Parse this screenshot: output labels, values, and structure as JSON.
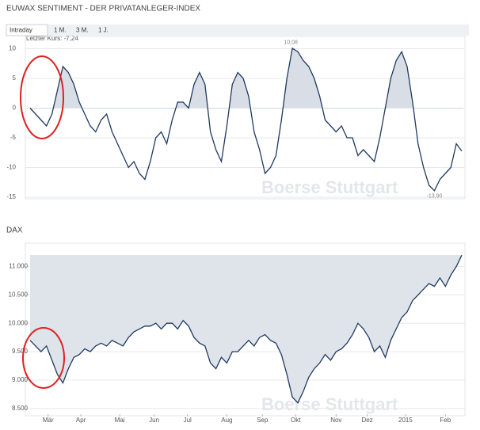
{
  "tabs": [
    "Intraday",
    "1 M.",
    "3 M.",
    "1 J."
  ],
  "chart_data": [
    {
      "type": "line",
      "title": "EUWAX SENTIMENT - DER PRIVATANLEGER-INDEX",
      "last_label": "Letzter Kurs: -7,24",
      "max_label": "10,08",
      "min_label": "-13,90",
      "watermark": "Boerse Stuttgart",
      "color": "#1f3a5f",
      "fill": "positive",
      "values": [
        0,
        -1,
        -2,
        -3,
        -1,
        3,
        7,
        6,
        4,
        1,
        -1,
        -3,
        -4,
        -2,
        -1,
        -4,
        -6,
        -8,
        -10,
        -9,
        -11,
        -12,
        -9,
        -5,
        -4,
        -6,
        -2,
        1,
        1,
        0,
        4,
        6,
        4,
        -4,
        -7,
        -9,
        -3,
        4,
        6,
        5,
        2,
        -4,
        -7,
        -11,
        -10,
        -8,
        -2,
        5,
        10.08,
        9.5,
        8,
        7,
        5,
        2,
        -2,
        -3,
        -4,
        -3,
        -5,
        -5,
        -8,
        -7,
        -8,
        -9,
        -5,
        0,
        5,
        8,
        9.5,
        7,
        1,
        -6,
        -10,
        -13,
        -13.9,
        -12,
        -11,
        -10,
        -6,
        -7.24
      ],
      "ylim": [
        -15,
        11
      ],
      "yticks": [
        10,
        5,
        0,
        -5,
        -10,
        -15
      ],
      "grid": true
    },
    {
      "type": "line",
      "title": "DAX",
      "watermark": "Boerse Stuttgart",
      "color": "#1f3a5f",
      "fill": "above",
      "values": [
        9700,
        9600,
        9500,
        9600,
        9350,
        9100,
        8950,
        9200,
        9400,
        9450,
        9550,
        9500,
        9600,
        9650,
        9600,
        9700,
        9650,
        9600,
        9750,
        9850,
        9900,
        9950,
        9950,
        10000,
        9900,
        10000,
        10000,
        9900,
        10050,
        9950,
        9750,
        9650,
        9600,
        9300,
        9200,
        9400,
        9300,
        9500,
        9500,
        9600,
        9700,
        9600,
        9750,
        9800,
        9700,
        9650,
        9450,
        9100,
        8700,
        8600,
        8800,
        9050,
        9200,
        9300,
        9450,
        9350,
        9500,
        9550,
        9650,
        9800,
        10000,
        9900,
        9750,
        9500,
        9600,
        9400,
        9700,
        9900,
        10100,
        10200,
        10400,
        10500,
        10600,
        10700,
        10650,
        10800,
        10650,
        10850,
        11000,
        11200
      ],
      "ylim": [
        8400,
        11300
      ],
      "yticks": [
        {
          "value": 8500,
          "label": "8.500"
        },
        {
          "value": 9000,
          "label": "9.000"
        },
        {
          "value": 9500,
          "label": "9.500"
        },
        {
          "value": 10000,
          "label": "10.000"
        },
        {
          "value": 10500,
          "label": "10.500"
        },
        {
          "value": 11000,
          "label": "11.000"
        }
      ],
      "xticks": [
        {
          "value": 3.3,
          "label": "Mär"
        },
        {
          "value": 9.3,
          "label": "Apr"
        },
        {
          "value": 16.4,
          "label": "Mai"
        },
        {
          "value": 22.7,
          "label": "Jun"
        },
        {
          "value": 28.8,
          "label": "Jul"
        },
        {
          "value": 36,
          "label": "Aug"
        },
        {
          "value": 42.5,
          "label": "Sep"
        },
        {
          "value": 48.6,
          "label": "Okt"
        },
        {
          "value": 56,
          "label": "Nov"
        },
        {
          "value": 61.7,
          "label": "Dez"
        },
        {
          "value": 68.7,
          "label": "2015"
        },
        {
          "value": 76,
          "label": "Feb"
        }
      ],
      "grid": true
    }
  ]
}
